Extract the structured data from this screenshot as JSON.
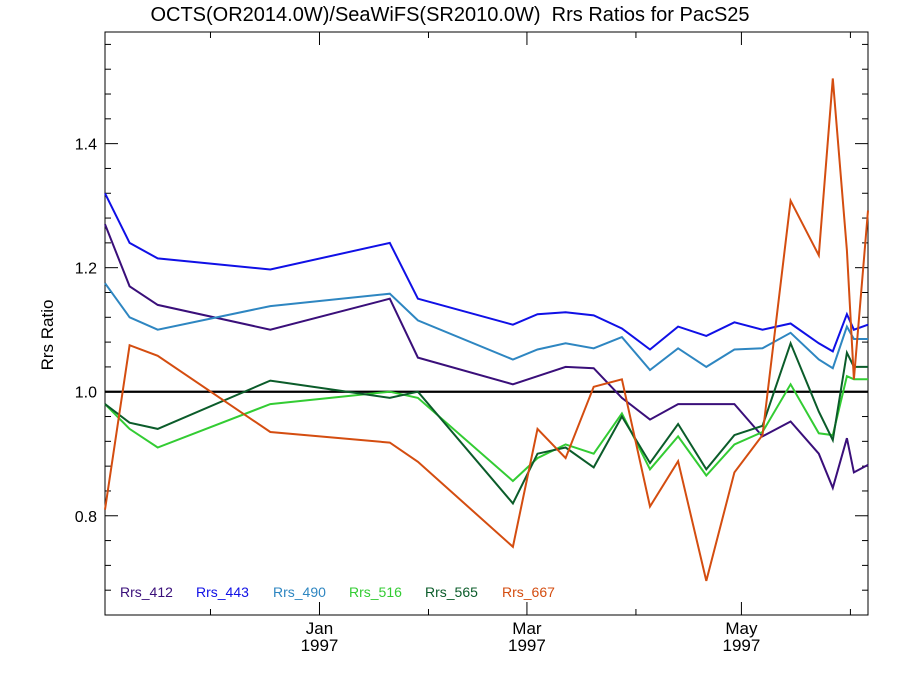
{
  "chart_data": {
    "type": "line",
    "title": "OCTS(OR2014.0W)/SeaWiFS(SR2010.0W)  Rrs Ratios for PacS25",
    "xlabel": "",
    "ylabel": "Rrs Ratio",
    "x_range": [
      "1996-11-01",
      "1997-06-06"
    ],
    "ylim": [
      0.64,
      1.58
    ],
    "yticks": [
      0.8,
      1.0,
      1.2,
      1.4
    ],
    "ytick_labels": [
      "0.8",
      "1.0",
      "1.2",
      "1.4"
    ],
    "xticks": [
      "1997-01-01",
      "1997-03-01",
      "1997-05-01"
    ],
    "xtick_labels": [
      [
        "Jan",
        "1997"
      ],
      [
        "Mar",
        "1997"
      ],
      [
        "May",
        "1997"
      ]
    ],
    "reference_line": 1.0,
    "grid": false,
    "legend_position": "bottom-left",
    "x": [
      "1996-11-01",
      "1996-11-08",
      "1996-11-16",
      "1996-12-18",
      "1997-01-21",
      "1997-01-29",
      "1997-02-25",
      "1997-03-04",
      "1997-03-12",
      "1997-03-20",
      "1997-03-28",
      "1997-04-05",
      "1997-04-13",
      "1997-04-21",
      "1997-04-29",
      "1997-05-07",
      "1997-05-15",
      "1997-05-23",
      "1997-05-31",
      "1997-06-06"
    ],
    "series": [
      {
        "name": "Rrs_412",
        "color": "#3a0f7a",
        "values": [
          1.27,
          1.17,
          1.14,
          1.1,
          1.15,
          1.055,
          1.012,
          1.025,
          1.04,
          1.038,
          0.99,
          0.955,
          0.98,
          0.98,
          0.98,
          0.928,
          0.952,
          0.9,
          0.925,
          0.882
        ]
      },
      {
        "name": "Rrs_443",
        "color": "#1010e6",
        "values": [
          1.32,
          1.24,
          1.215,
          1.197,
          1.24,
          1.15,
          1.108,
          1.125,
          1.128,
          1.123,
          1.102,
          1.068,
          1.105,
          1.09,
          1.112,
          1.1,
          1.11,
          1.078,
          1.125,
          1.108
        ]
      },
      {
        "name": "Rrs_490",
        "color": "#2e86c1",
        "values": [
          1.175,
          1.12,
          1.1,
          1.138,
          1.158,
          1.115,
          1.052,
          1.068,
          1.078,
          1.07,
          1.088,
          1.035,
          1.07,
          1.04,
          1.068,
          1.07,
          1.095,
          1.052,
          1.105,
          1.085
        ]
      },
      {
        "name": "Rrs_516",
        "color": "#33cc33",
        "values": [
          0.98,
          0.94,
          0.91,
          0.98,
          1.0,
          0.99,
          0.856,
          0.893,
          0.915,
          0.9,
          0.965,
          0.875,
          0.928,
          0.865,
          0.915,
          0.935,
          1.012,
          0.933,
          1.025,
          1.02
        ]
      },
      {
        "name": "Rrs_565",
        "color": "#0b5c2a",
        "values": [
          0.98,
          0.95,
          0.94,
          1.018,
          0.99,
          1.0,
          0.82,
          0.9,
          0.91,
          0.878,
          0.96,
          0.885,
          0.948,
          0.875,
          0.93,
          0.945,
          1.078,
          0.968,
          1.063,
          1.04
        ]
      },
      {
        "name": "Rrs_667",
        "color": "#d44d10",
        "values": [
          0.81,
          1.075,
          1.058,
          0.935,
          0.918,
          0.887,
          0.75,
          0.94,
          0.893,
          1.008,
          1.02,
          0.815,
          0.888,
          0.695,
          0.87,
          0.93,
          1.308,
          1.22,
          1.228,
          1.292
        ]
      }
    ],
    "extra_points": {
      "dates": [
        "1997-05-27",
        "1997-06-02"
      ],
      "values": {
        "Rrs_412": [
          0.845,
          0.87
        ],
        "Rrs_443": [
          1.065,
          1.1
        ],
        "Rrs_490": [
          1.038,
          1.085
        ],
        "Rrs_516": [
          0.93,
          1.02
        ],
        "Rrs_565": [
          0.922,
          1.04
        ],
        "Rrs_667": [
          1.505,
          1.02
        ]
      }
    }
  }
}
